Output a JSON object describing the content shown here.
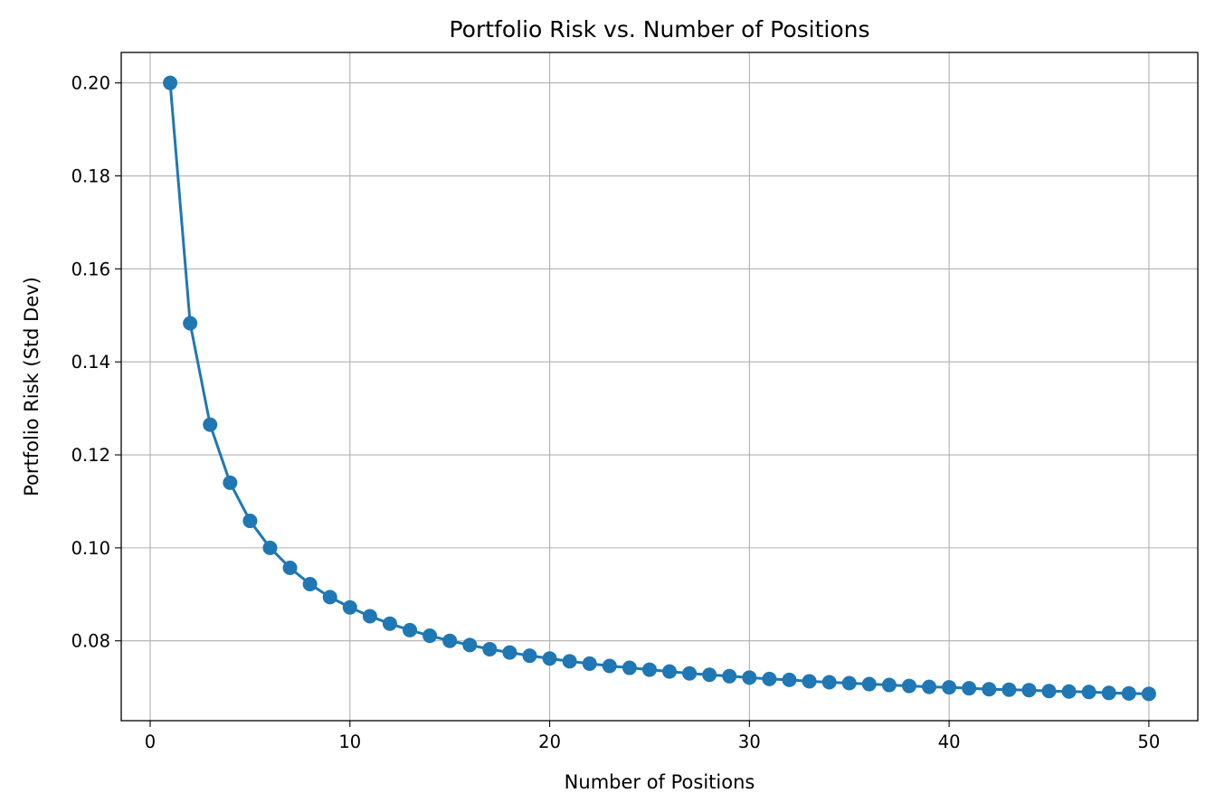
{
  "chart_data": {
    "type": "line",
    "title": "Portfolio Risk vs. Number of Positions",
    "xlabel": "Number of Positions",
    "ylabel": "Portfolio Risk (Std Dev)",
    "xlim": [
      -1.45,
      52.45
    ],
    "ylim": [
      0.06283,
      0.20655
    ],
    "x_ticks": [
      0,
      10,
      20,
      30,
      40,
      50
    ],
    "x_tick_labels": [
      "0",
      "10",
      "20",
      "30",
      "40",
      "50"
    ],
    "y_ticks": [
      0.08,
      0.1,
      0.12,
      0.14,
      0.16,
      0.18,
      0.2
    ],
    "y_tick_labels": [
      "0.08",
      "0.10",
      "0.12",
      "0.14",
      "0.16",
      "0.18",
      "0.20"
    ],
    "grid": true,
    "legend": false,
    "series": [
      {
        "color": "#1f77b4",
        "marker": "circle",
        "x": [
          1,
          2,
          3,
          4,
          5,
          6,
          7,
          8,
          9,
          10,
          11,
          12,
          13,
          14,
          15,
          16,
          17,
          18,
          19,
          20,
          21,
          22,
          23,
          24,
          25,
          26,
          27,
          28,
          29,
          30,
          31,
          32,
          33,
          34,
          35,
          36,
          37,
          38,
          39,
          40,
          41,
          42,
          43,
          44,
          45,
          46,
          47,
          48,
          49,
          50
        ],
        "y": [
          0.2,
          0.1483,
          0.1265,
          0.114,
          0.1058,
          0.1,
          0.0957,
          0.0922,
          0.0894,
          0.0872,
          0.0853,
          0.0837,
          0.0823,
          0.0811,
          0.08,
          0.0791,
          0.0782,
          0.0775,
          0.0768,
          0.0762,
          0.0756,
          0.0751,
          0.0746,
          0.0742,
          0.0738,
          0.0734,
          0.073,
          0.0727,
          0.0724,
          0.0721,
          0.0718,
          0.0716,
          0.0713,
          0.0711,
          0.0709,
          0.0707,
          0.0705,
          0.0703,
          0.0701,
          0.07,
          0.0698,
          0.0696,
          0.0695,
          0.0694,
          0.0692,
          0.0691,
          0.069,
          0.0688,
          0.0687,
          0.0686
        ]
      }
    ]
  }
}
